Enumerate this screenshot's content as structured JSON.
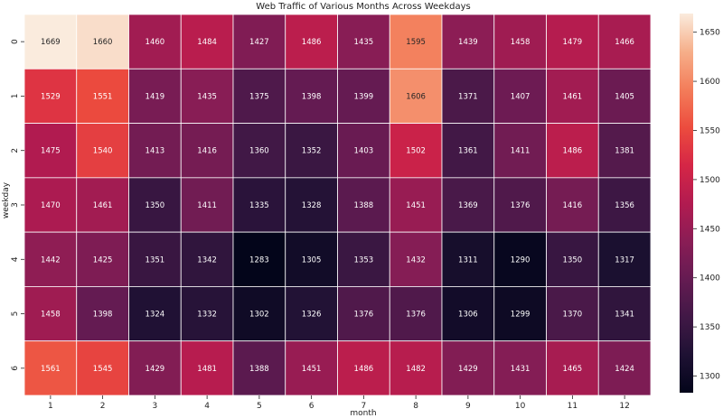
{
  "chart_data": {
    "type": "heatmap",
    "title": "Web Traffic of Various Months Across Weekdays",
    "xlabel": "month",
    "ylabel": "weekday",
    "x_categories": [
      "1",
      "2",
      "3",
      "4",
      "5",
      "6",
      "7",
      "8",
      "9",
      "10",
      "11",
      "12"
    ],
    "y_categories": [
      "0",
      "1",
      "2",
      "3",
      "4",
      "5",
      "6"
    ],
    "values": [
      [
        1669,
        1660,
        1460,
        1484,
        1427,
        1486,
        1435,
        1595,
        1439,
        1458,
        1479,
        1466
      ],
      [
        1529,
        1551,
        1419,
        1435,
        1375,
        1398,
        1399,
        1606,
        1371,
        1407,
        1461,
        1405
      ],
      [
        1475,
        1540,
        1413,
        1416,
        1360,
        1352,
        1403,
        1502,
        1361,
        1411,
        1486,
        1381
      ],
      [
        1470,
        1461,
        1350,
        1411,
        1335,
        1328,
        1388,
        1451,
        1369,
        1376,
        1416,
        1356
      ],
      [
        1442,
        1425,
        1351,
        1342,
        1283,
        1305,
        1353,
        1432,
        1311,
        1290,
        1350,
        1317
      ],
      [
        1458,
        1398,
        1324,
        1332,
        1302,
        1326,
        1376,
        1376,
        1306,
        1299,
        1370,
        1341
      ],
      [
        1561,
        1545,
        1429,
        1481,
        1388,
        1451,
        1486,
        1482,
        1429,
        1431,
        1465,
        1424
      ]
    ],
    "colormap": "rocket",
    "colorbar": {
      "ticks": [
        1300,
        1350,
        1400,
        1450,
        1500,
        1550,
        1600,
        1650
      ],
      "range": [
        1283,
        1669
      ]
    }
  }
}
